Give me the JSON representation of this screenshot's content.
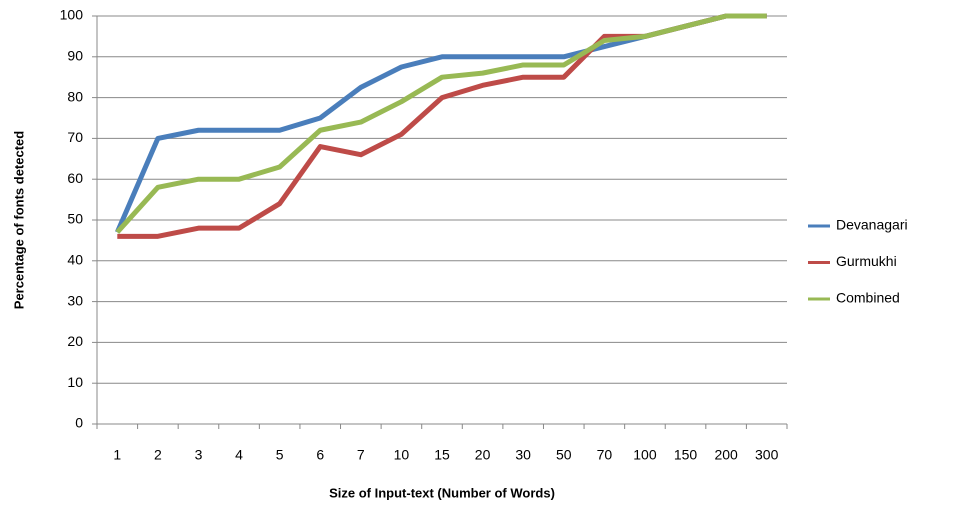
{
  "chart_data": {
    "type": "line",
    "x_label": "Size of Input-text (Number of Words)",
    "y_label": "Percentage of fonts detected",
    "categories": [
      "1",
      "2",
      "3",
      "4",
      "5",
      "6",
      "7",
      "10",
      "15",
      "20",
      "30",
      "50",
      "70",
      "100",
      "150",
      "200",
      "300"
    ],
    "series": [
      {
        "name": "Devanagari",
        "color": "#4a7ebb",
        "values": [
          47,
          70,
          72,
          72,
          72,
          75,
          82.5,
          87.5,
          90,
          90,
          90,
          90,
          92.5,
          95,
          97.5,
          100,
          100
        ]
      },
      {
        "name": "Gurmukhi",
        "color": "#be4b48",
        "values": [
          46,
          46,
          48,
          48,
          54,
          68,
          66,
          71,
          80,
          83,
          85,
          85,
          95,
          95,
          97.5,
          100,
          100
        ]
      },
      {
        "name": "Combined",
        "color": "#98b954",
        "values": [
          47,
          58,
          60,
          60,
          63,
          72,
          74,
          79,
          85,
          86,
          88,
          88,
          94,
          95,
          97.5,
          100,
          100
        ]
      }
    ],
    "ylim": [
      0,
      100
    ],
    "yticks": [
      0,
      10,
      20,
      30,
      40,
      50,
      60,
      70,
      80,
      90,
      100
    ],
    "grid": true,
    "legend": "right"
  }
}
